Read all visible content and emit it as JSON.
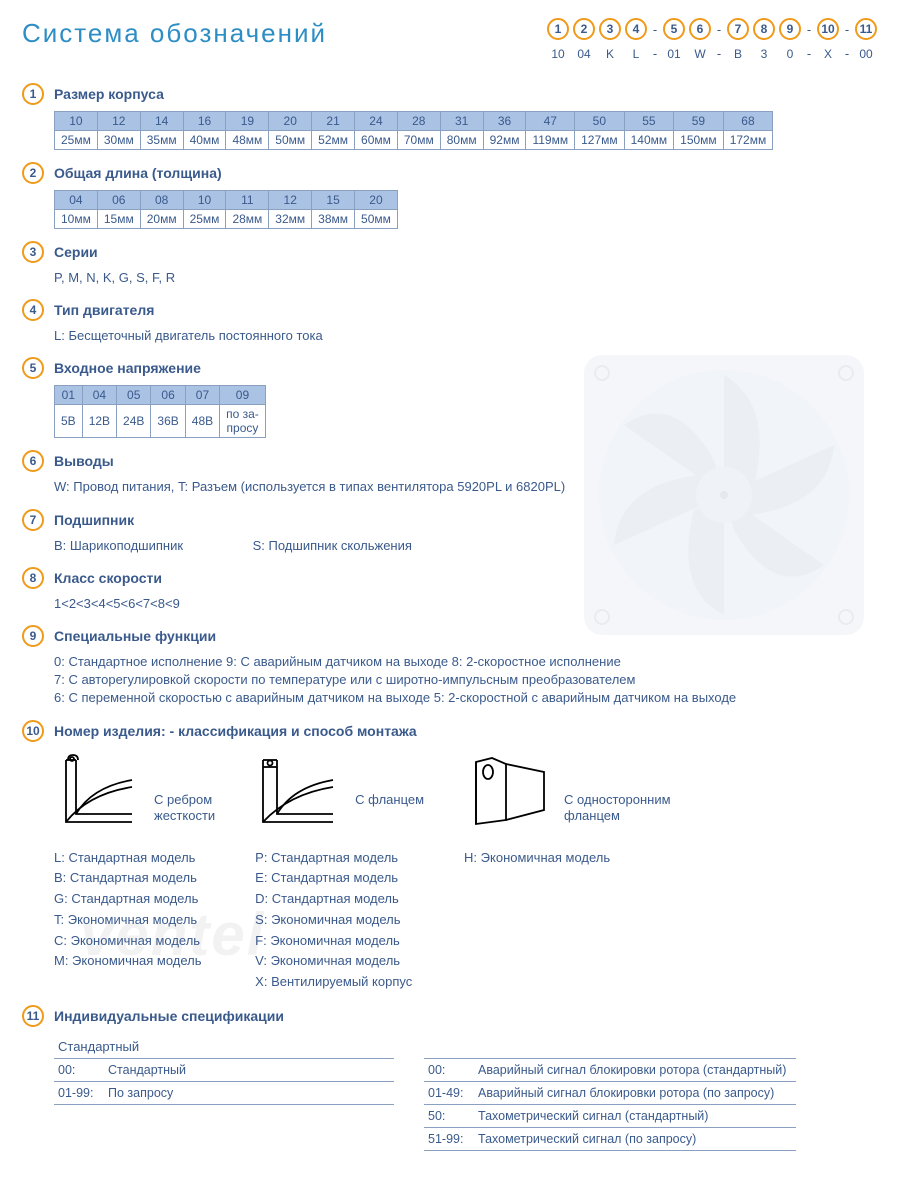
{
  "colors": {
    "accent_orange": "#f09a1a",
    "text_blue": "#3a5a8c",
    "title_blue": "#2d8ec5",
    "table_header_bg": "#aac2e4",
    "table_border": "#8aa0c0"
  },
  "title": "Система обозначений",
  "code_row": {
    "positions": [
      "1",
      "2",
      "3",
      "4",
      "5",
      "6",
      "7",
      "8",
      "9",
      "10",
      "11"
    ],
    "dashes_after": [
      3,
      5,
      8,
      9
    ],
    "labels": [
      "10",
      "04",
      "K",
      "L",
      "01",
      "W",
      "B",
      "3",
      "0",
      "X",
      "00"
    ]
  },
  "sections": {
    "1": {
      "title": "Размер корпуса",
      "table": {
        "headers": [
          "10",
          "12",
          "14",
          "16",
          "19",
          "20",
          "21",
          "24",
          "28",
          "31",
          "36",
          "47",
          "50",
          "55",
          "59",
          "68"
        ],
        "row": [
          "25мм",
          "30мм",
          "35мм",
          "40мм",
          "48мм",
          "50мм",
          "52мм",
          "60мм",
          "70мм",
          "80мм",
          "92мм",
          "119мм",
          "127мм",
          "140мм",
          "150мм",
          "172мм"
        ]
      }
    },
    "2": {
      "title": "Общая длина (толщина)",
      "table": {
        "headers": [
          "04",
          "06",
          "08",
          "10",
          "11",
          "12",
          "15",
          "20"
        ],
        "row": [
          "10мм",
          "15мм",
          "20мм",
          "25мм",
          "28мм",
          "32мм",
          "38мм",
          "50мм"
        ]
      }
    },
    "3": {
      "title": "Серии",
      "body": "P, M, N, K, G, S, F, R"
    },
    "4": {
      "title": "Тип двигателя",
      "body": "L: Бесщеточный двигатель постоянного тока"
    },
    "5": {
      "title": "Входное напряжение",
      "table": {
        "headers": [
          "01",
          "04",
          "05",
          "06",
          "07",
          "09"
        ],
        "row": [
          "5В",
          "12В",
          "24В",
          "36В",
          "48В",
          "по за-\nпросу"
        ]
      }
    },
    "6": {
      "title": "Выводы",
      "body": "W: Провод питания, T: Разъем (используется в типах вентилятора  5920PL и 6820PL)"
    },
    "7": {
      "title": "Подшипник",
      "body_b": "B: Шарикоподшипник",
      "body_s": "S: Подшипник скольжения"
    },
    "8": {
      "title": "Класс скорости",
      "body": "1<2<3<4<5<6<7<8<9"
    },
    "9": {
      "title": "Специальные функции",
      "lines": [
        "0: Стандартное исполнение   9:  С аварийным датчиком на выходе   8: 2-скоростное исполнение",
        "7: С авторегулировкой скорости по температуре или с широтно-импульсным преобразователем",
        "6: С переменной скоростью с аварийным датчиком на выходе   5: 2-скоростной с аварийным датчиком на выходе"
      ]
    },
    "10": {
      "title": "Номер изделия: - классификация  и способ монтажа",
      "mounts": [
        {
          "caption": "С ребром\nжесткости",
          "models": [
            "L:  Стандартная модель",
            "B:  Стандартная модель",
            "G:  Стандартная модель",
            "T:  Экономичная модель",
            "C:  Экономичная модель",
            "M:  Экономичная модель"
          ]
        },
        {
          "caption": "С фланцем",
          "models": [
            "P:  Стандартная модель",
            "E:  Стандартная модель",
            "D:  Стандартная модель",
            "S:  Экономичная модель",
            "F:  Экономичная модель",
            "V:  Экономичная модель",
            "X:  Вентилируемый корпус"
          ]
        },
        {
          "caption": "С односторонним\nфланцем",
          "models": [
            "H:  Экономичная модель"
          ]
        }
      ]
    },
    "11": {
      "title": "Индивидуальные спецификации",
      "left_head": "Стандартный",
      "left_rows": [
        [
          "00:",
          "Стандартный"
        ],
        [
          "01-99:",
          "По запросу"
        ]
      ],
      "right_rows": [
        [
          "00:",
          "Аварийный сигнал блокировки ротора (стандартный)"
        ],
        [
          "01-49:",
          "Аварийный сигнал блокировки ротора (по запросу)"
        ],
        [
          "50:",
          "Тахометрический сигнал (стандартный)"
        ],
        [
          "51-99:",
          "Тахометрический сигнал (по запросу)"
        ]
      ]
    }
  },
  "watermark": "ventel"
}
